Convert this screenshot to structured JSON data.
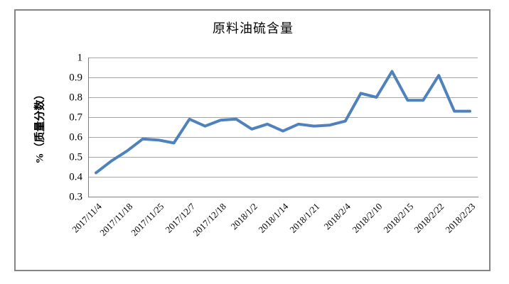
{
  "chart_data": {
    "type": "line",
    "title": "原料油硫含量",
    "xlabel": "",
    "ylabel": "%（质量分数）",
    "ylim": [
      0.3,
      1.0
    ],
    "ytick_labels": [
      "1",
      "0.9",
      "0.8",
      "0.7",
      "0.6",
      "0.5",
      "0.4",
      "0.3"
    ],
    "ytick_values": [
      1.0,
      0.9,
      0.8,
      0.7,
      0.6,
      0.5,
      0.4,
      0.3
    ],
    "grid": "horizontal",
    "legend_position": "none",
    "x_labels_visible": [
      "2017/11/4",
      "2017/11/18",
      "2017/11/25",
      "2017/12/7",
      "2017/12/18",
      "2018/1/2",
      "2018/1/14",
      "2018/1/21",
      "2018/2/4",
      "2018/2/10",
      "2018/2/15",
      "2018/2/22",
      "2018/2/23"
    ],
    "x_label_interval": 2,
    "n_points": 25,
    "series": [
      {
        "name": "原料油硫含量",
        "color": "#4F81BD",
        "values": [
          0.42,
          0.48,
          0.53,
          0.59,
          0.585,
          0.57,
          0.69,
          0.655,
          0.685,
          0.69,
          0.64,
          0.665,
          0.63,
          0.665,
          0.655,
          0.66,
          0.68,
          0.82,
          0.8,
          0.93,
          0.785,
          0.785,
          0.91,
          0.73,
          0.73
        ]
      }
    ],
    "colors": {
      "series": "#4F81BD",
      "gridline": "#a6a6a6",
      "axis": "#808080",
      "border": "#858585",
      "text": "#000000",
      "background": "#ffffff"
    }
  }
}
